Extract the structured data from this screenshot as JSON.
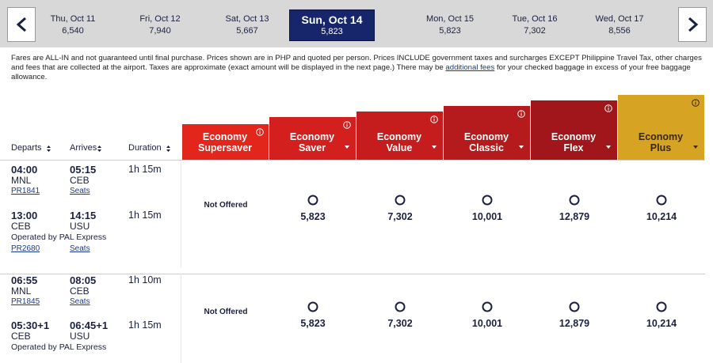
{
  "date_bar": {
    "dates": [
      {
        "day": "Thu, Oct 11",
        "price": "6,540"
      },
      {
        "day": "Fri, Oct 12",
        "price": "7,940"
      },
      {
        "day": "Sat, Oct 13",
        "price": "5,667"
      },
      {
        "day": "Sun, Oct 14",
        "price": "5,823",
        "selected": true
      },
      {
        "day": "Mon, Oct 15",
        "price": "5,823"
      },
      {
        "day": "Tue, Oct 16",
        "price": "7,302"
      },
      {
        "day": "Wed, Oct 17",
        "price": "8,556"
      }
    ]
  },
  "notice": {
    "text": "Fares are ALL-IN and not guaranteed until final purchase. Prices shown are in PHP and quoted per person. Prices INCLUDE government taxes and surcharges EXCEPT Philippine Travel Tax, other charges and fees that are collected at the airport. Taxes are approximate (exact amount will be displayed in the next page.) There may be",
    "link": "additional fees",
    "text_after": "for your checked baggage in excess of your free baggage allowance."
  },
  "columns": {
    "departs": "Departs",
    "arrives": "Arrives",
    "duration": "Duration"
  },
  "fare_classes": [
    {
      "name": "Economy Supersaver",
      "color": "#e3261c"
    },
    {
      "name": "Economy Saver",
      "color": "#d3201f"
    },
    {
      "name": "Economy Value",
      "color": "#c51d1e"
    },
    {
      "name": "Economy Classic",
      "color": "#b51a1c"
    },
    {
      "name": "Economy Flex",
      "color": "#a0161a"
    },
    {
      "name": "Economy Plus",
      "color": "#d6a323"
    }
  ],
  "flights": [
    {
      "legs": [
        {
          "depart_time": "04:00",
          "depart_airport": "MNL",
          "flight_no": "PR1841",
          "arrive_time": "05:15",
          "arrive_airport": "CEB",
          "seats": "Seats",
          "duration": "1h 15m"
        },
        {
          "depart_time": "13:00",
          "depart_airport": "CEB",
          "operated_by": "Operated by PAL Express",
          "flight_no": "PR2680",
          "arrive_time": "14:15",
          "arrive_airport": "USU",
          "seats": "Seats",
          "duration": "1h 15m"
        }
      ],
      "not_offered": "Not Offered",
      "fares": [
        "5,823",
        "7,302",
        "10,001",
        "12,879",
        "10,214"
      ]
    },
    {
      "legs": [
        {
          "depart_time": "06:55",
          "depart_airport": "MNL",
          "flight_no": "PR1845",
          "arrive_time": "08:05",
          "arrive_airport": "CEB",
          "seats": "Seats",
          "duration": "1h 10m"
        },
        {
          "depart_time": "05:30+1",
          "depart_airport": "CEB",
          "operated_by": "Operated by PAL Express",
          "arrive_time": "06:45+1",
          "arrive_airport": "USU",
          "duration": "1h 15m"
        }
      ],
      "not_offered": "Not Offered",
      "fares": [
        "5,823",
        "7,302",
        "10,001",
        "12,879",
        "10,214"
      ]
    }
  ]
}
